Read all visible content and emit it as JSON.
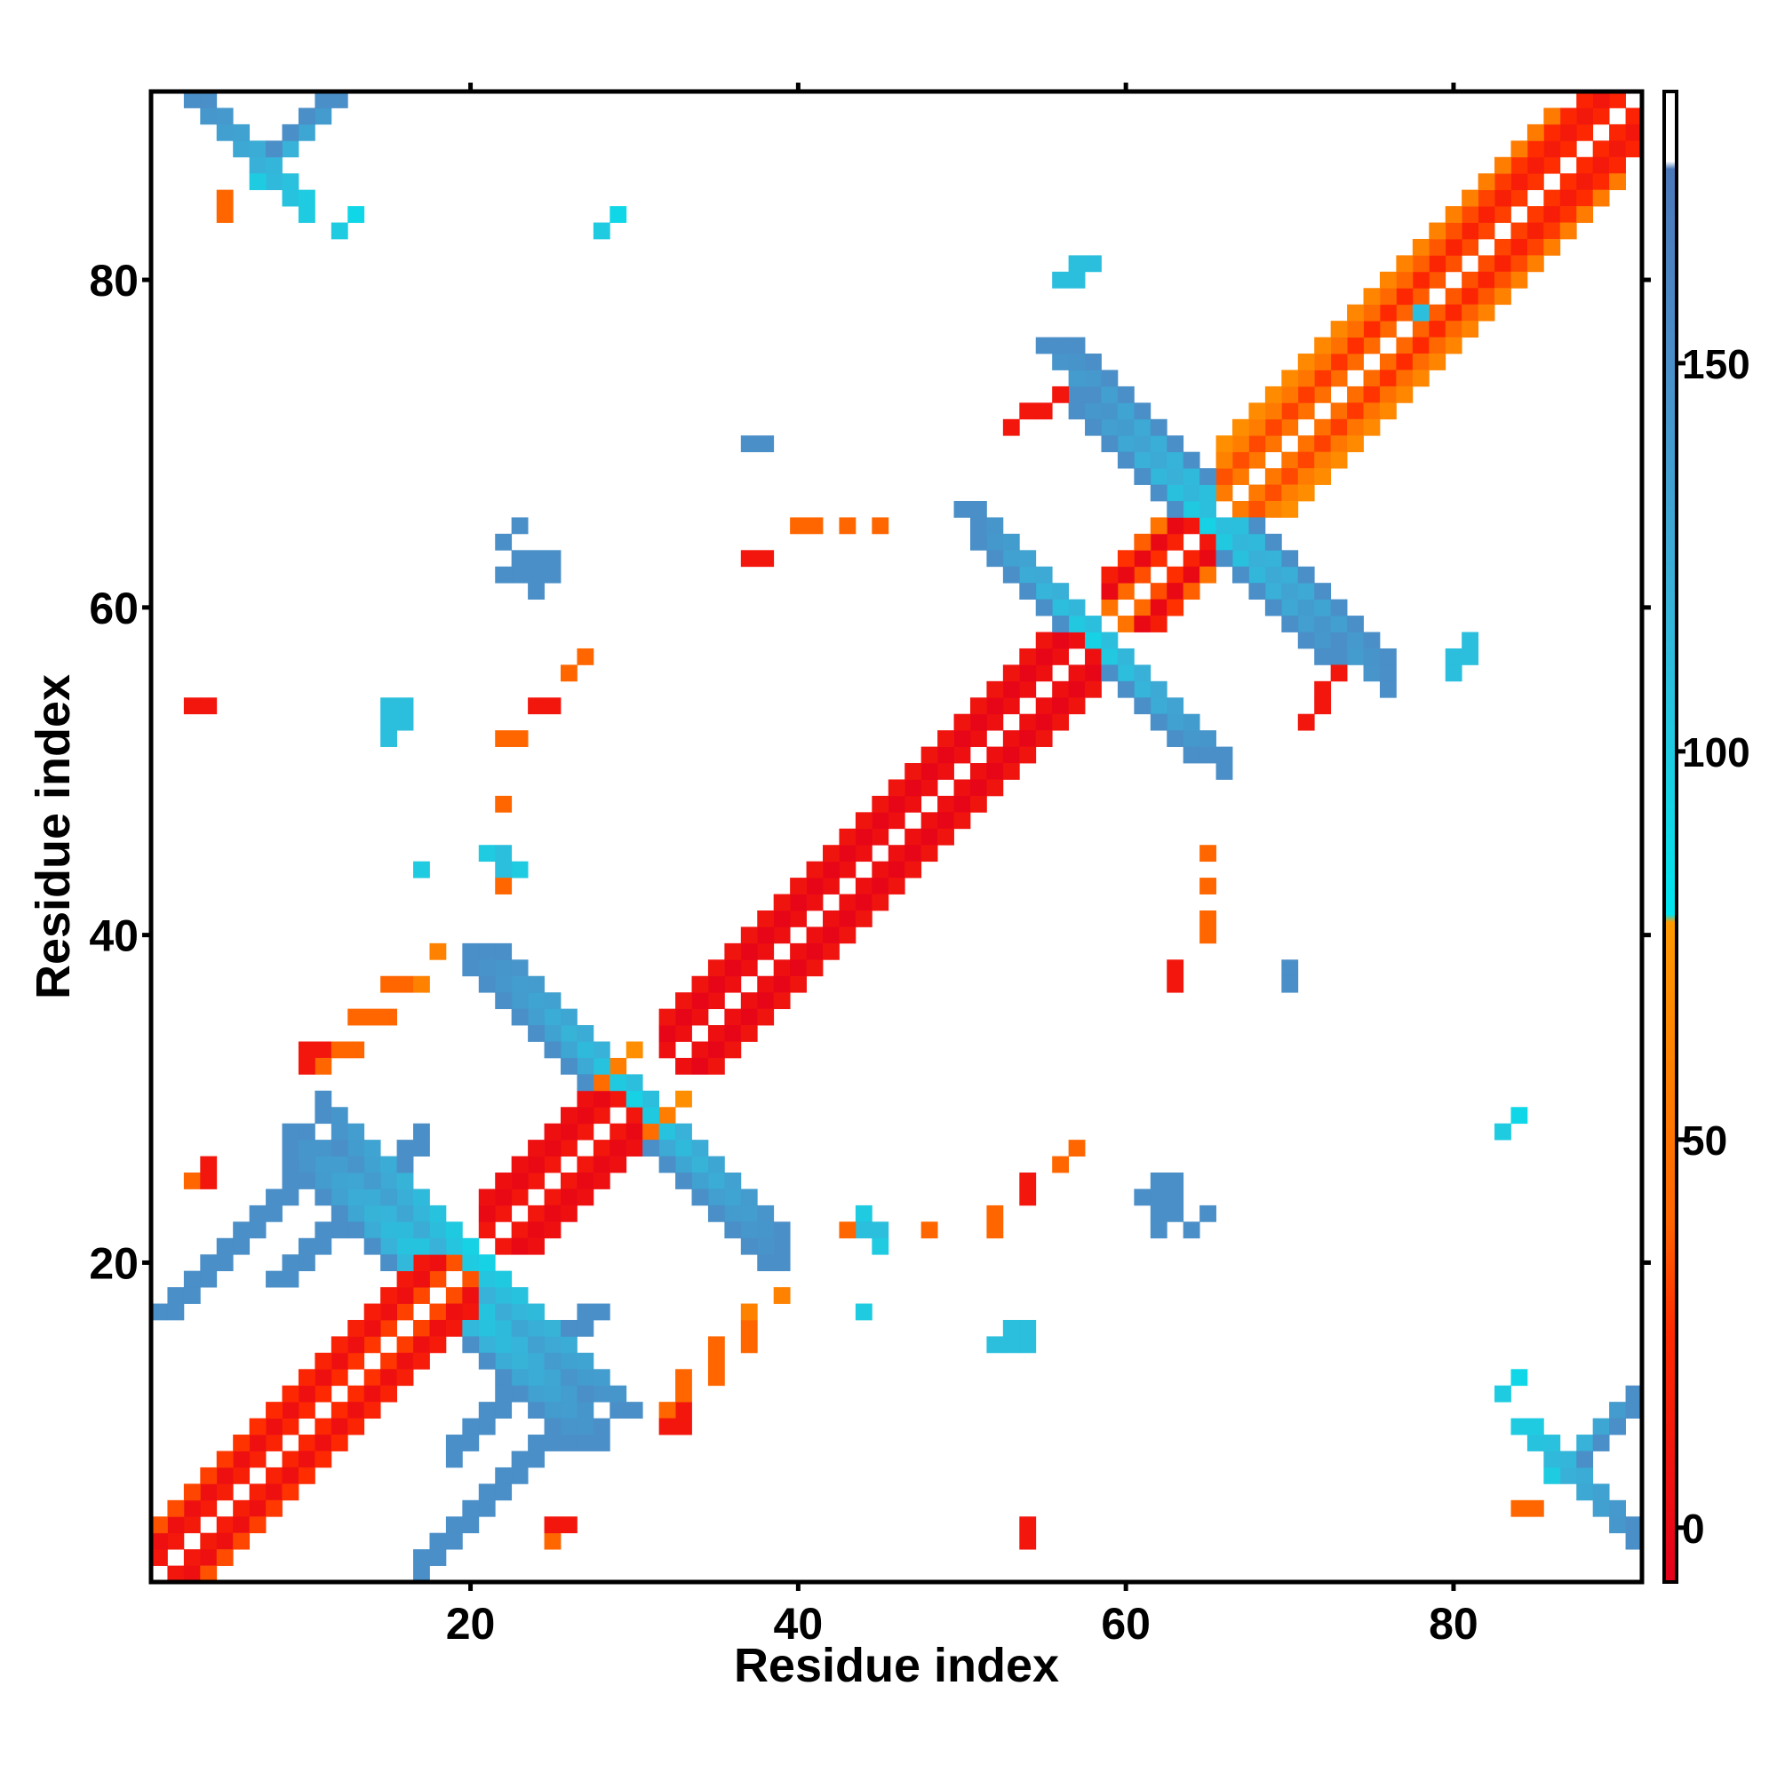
{
  "chart_data": {
    "type": "heatmap",
    "title": "",
    "xlabel": "Residue index",
    "ylabel": "Residue index",
    "xlim": [
      0.5,
      91.5
    ],
    "ylim": [
      0.5,
      91.5
    ],
    "x_ticks": [
      20,
      40,
      60,
      80
    ],
    "y_ticks": [
      20,
      40,
      60,
      80
    ],
    "x_tick_labels": [
      "20",
      "40",
      "60",
      "80"
    ],
    "y_tick_labels": [
      "20",
      "40",
      "60",
      "80"
    ],
    "grid": false,
    "legend": "colorbar-right",
    "colorbar": {
      "range": [
        -7,
        185
      ],
      "ticks": [
        0,
        50,
        100,
        150
      ],
      "tick_labels": [
        "0",
        "50",
        "100",
        "150"
      ],
      "stops": [
        {
          "value": -7,
          "color": "#e3001b"
        },
        {
          "value": 25,
          "color": "#ff2a00"
        },
        {
          "value": 40,
          "color": "#ff6600"
        },
        {
          "value": 78,
          "color": "#ff9900"
        },
        {
          "value": 79,
          "color": "#00e5ee"
        },
        {
          "value": 100,
          "color": "#1ecbe1"
        },
        {
          "value": 120,
          "color": "#38b2d8"
        },
        {
          "value": 150,
          "color": "#4a8fc8"
        },
        {
          "value": 175,
          "color": "#4a78b8"
        },
        {
          "value": 176,
          "color": "#ffffff"
        },
        {
          "value": 185,
          "color": "#ffffff"
        }
      ]
    },
    "segments": [
      {
        "i0": 1,
        "j0": 2,
        "len": 19,
        "step": 1,
        "values": [
          10,
          35
        ]
      },
      {
        "i0": 1,
        "j0": 3,
        "len": 18,
        "step": 1,
        "values": [
          5
        ]
      },
      {
        "i0": 1,
        "j0": 4,
        "len": 17,
        "step": 1,
        "values": [
          35,
          10
        ]
      },
      {
        "i0": 7,
        "j0": 10,
        "len": 8,
        "step": 1,
        "values": [
          15,
          40
        ]
      },
      {
        "i0": 21,
        "j0": 22,
        "len": 9,
        "step": 1,
        "values": [
          10
        ]
      },
      {
        "i0": 21,
        "j0": 23,
        "len": 8,
        "step": 1,
        "values": [
          0
        ]
      },
      {
        "i0": 21,
        "j0": 24,
        "len": 7,
        "step": 1,
        "values": [
          5
        ]
      },
      {
        "i0": 28,
        "j0": 31,
        "len": 3,
        "step": 1,
        "values": [
          45,
          70
        ]
      },
      {
        "i0": 32,
        "j0": 33,
        "len": 26,
        "step": 1,
        "values": [
          5
        ]
      },
      {
        "i0": 32,
        "j0": 34,
        "len": 25,
        "step": 1,
        "values": [
          -3
        ]
      },
      {
        "i0": 32,
        "j0": 35,
        "len": 24,
        "step": 1,
        "values": [
          8
        ]
      },
      {
        "i0": 38,
        "j0": 41,
        "len": 8,
        "step": 1,
        "values": [
          30,
          60,
          95
        ]
      },
      {
        "i0": 43,
        "j0": 46,
        "len": 4,
        "step": 1,
        "values": [
          100,
          90
        ]
      },
      {
        "i0": 59,
        "j0": 60,
        "len": 6,
        "step": 1,
        "values": [
          50,
          10
        ]
      },
      {
        "i0": 59,
        "j0": 61,
        "len": 5,
        "step": 1,
        "values": [
          0
        ]
      },
      {
        "i0": 59,
        "j0": 62,
        "len": 4,
        "step": 1,
        "values": [
          15,
          50
        ]
      },
      {
        "i0": 66,
        "j0": 67,
        "len": 25,
        "step": 1,
        "values": [
          55,
          20
        ]
      },
      {
        "i0": 66,
        "j0": 68,
        "len": 24,
        "step": 1,
        "values": [
          35,
          10
        ]
      },
      {
        "i0": 66,
        "j0": 69,
        "len": 23,
        "step": 1,
        "values": [
          60,
          20
        ]
      },
      {
        "i0": 66,
        "j0": 70,
        "len": 21,
        "step": 1,
        "values": [
          70,
          55
        ]
      },
      {
        "i0": 74,
        "j0": 78,
        "len": 5,
        "step": 1,
        "values": [
          100,
          120
        ]
      },
      {
        "i0": 19,
        "j0": 18,
        "len": 10,
        "step": -1,
        "values": [
          95,
          150
        ]
      },
      {
        "i0": 19,
        "j0": 17,
        "len": 9,
        "step": -1,
        "values": [
          110,
          150
        ]
      },
      {
        "i0": 19,
        "j0": 16,
        "len": 8,
        "step": -1,
        "values": [
          150
        ]
      },
      {
        "i0": 20,
        "j0": 18,
        "len": 9,
        "step": -1,
        "values": [
          100,
          150
        ]
      },
      {
        "i0": 30,
        "j0": 30,
        "len": 10,
        "step": -1,
        "values": [
          95,
          150
        ]
      },
      {
        "i0": 30,
        "j0": 29,
        "len": 10,
        "step": -1,
        "values": [
          120,
          150
        ]
      },
      {
        "i0": 31,
        "j0": 30,
        "len": 9,
        "step": -1,
        "values": [
          110,
          150
        ]
      },
      {
        "i0": 30,
        "j0": 28,
        "len": 9,
        "step": -1,
        "values": [
          150
        ]
      },
      {
        "i0": 20,
        "j0": 20,
        "len": 10,
        "step": -1,
        "values": [
          100,
          150
        ]
      },
      {
        "i0": 19,
        "j0": 20,
        "len": 9,
        "step": -1,
        "values": [
          110,
          150
        ]
      },
      {
        "i0": 21,
        "j0": 20,
        "len": 10,
        "step": -1,
        "values": [
          95,
          150
        ]
      },
      {
        "i0": 58,
        "j0": 58,
        "len": 8,
        "step": -1,
        "values": [
          95,
          150
        ]
      },
      {
        "i0": 59,
        "j0": 58,
        "len": 8,
        "step": -1,
        "values": [
          110,
          150
        ]
      },
      {
        "i0": 58,
        "j0": 57,
        "len": 7,
        "step": -1,
        "values": [
          150
        ]
      },
      {
        "i0": 58,
        "j0": 58,
        "len": 9,
        "step": -1,
        "values": [
          95,
          150
        ]
      },
      {
        "i0": 57,
        "j0": 58,
        "len": 8,
        "step": -1,
        "values": [
          110,
          150
        ]
      },
      {
        "i0": 58,
        "j0": 59,
        "len": 8,
        "step": -1,
        "values": [
          150
        ]
      },
      {
        "i0": 65,
        "j0": 65,
        "len": 9,
        "step": -1,
        "values": [
          95,
          150
        ]
      },
      {
        "i0": 66,
        "j0": 65,
        "len": 8,
        "step": -1,
        "values": [
          110,
          150
        ]
      },
      {
        "i0": 65,
        "j0": 64,
        "len": 8,
        "step": -1,
        "values": [
          150
        ]
      },
      {
        "i0": 66,
        "j0": 65,
        "len": 11,
        "step": -1,
        "values": [
          100,
          150
        ]
      },
      {
        "i0": 67,
        "j0": 65,
        "len": 10,
        "step": -1,
        "values": [
          110,
          150
        ]
      },
      {
        "i0": 68,
        "j0": 65,
        "len": 9,
        "step": -1,
        "values": [
          150
        ]
      },
      {
        "i0": 1,
        "j0": 17,
        "len": 9,
        "step": 1,
        "values": [
          150
        ]
      },
      {
        "i0": 2,
        "j0": 17,
        "len": 8,
        "step": 1,
        "values": [
          150
        ]
      },
      {
        "i0": 8,
        "j0": 19,
        "len": 10,
        "step": 1,
        "values": [
          150
        ]
      },
      {
        "i0": 9,
        "j0": 19,
        "len": 9,
        "step": 1,
        "values": [
          150
        ]
      },
      {
        "i0": 3,
        "j0": 91,
        "len": 8,
        "step": -1,
        "values": [
          150,
          100
        ]
      },
      {
        "i0": 4,
        "j0": 91,
        "len": 7,
        "step": -1,
        "values": [
          150,
          100
        ]
      },
      {
        "i0": 86,
        "j0": 7,
        "len": 6,
        "step": 1,
        "values": [
          100,
          150
        ]
      },
      {
        "i0": 87,
        "j0": 7,
        "len": 5,
        "step": 1,
        "values": [
          150
        ]
      },
      {
        "i0": 76,
        "j0": 80,
        "len": 4,
        "step": -1,
        "values": [
          110
        ]
      },
      {
        "i0": 77,
        "j0": 80,
        "len": 3,
        "step": -1,
        "values": [
          110
        ]
      }
    ],
    "cells": [
      [
        3,
        4,
        40
      ],
      [
        4,
        5,
        40
      ],
      [
        13,
        84,
        90
      ],
      [
        29,
        84,
        90
      ],
      [
        4,
        54,
        10
      ],
      [
        25,
        54,
        10
      ],
      [
        27,
        57,
        40
      ],
      [
        23,
        52,
        40
      ],
      [
        16,
        54,
        110
      ],
      [
        16,
        53,
        110
      ],
      [
        23,
        65,
        150
      ],
      [
        23,
        63,
        150
      ],
      [
        24,
        63,
        150
      ],
      [
        25,
        63,
        150
      ],
      [
        25,
        62,
        150
      ],
      [
        38,
        70,
        150
      ],
      [
        38,
        63,
        10
      ],
      [
        41,
        65,
        40
      ],
      [
        45,
        65,
        40
      ],
      [
        11,
        33,
        10
      ],
      [
        11,
        32,
        40
      ],
      [
        4,
        26,
        10
      ],
      [
        3,
        25,
        40
      ],
      [
        4,
        25,
        10
      ],
      [
        13,
        35,
        40
      ],
      [
        14,
        35,
        40
      ],
      [
        15,
        37,
        40
      ],
      [
        16,
        37,
        40
      ],
      [
        18,
        39,
        60
      ],
      [
        20,
        39,
        60
      ],
      [
        21,
        39,
        100
      ],
      [
        17,
        44,
        100
      ],
      [
        21,
        45,
        100
      ],
      [
        22,
        45,
        110
      ],
      [
        23,
        44,
        100
      ],
      [
        25,
        3,
        10
      ],
      [
        26,
        4,
        10
      ],
      [
        37,
        17,
        60
      ],
      [
        38,
        20,
        70
      ],
      [
        35,
        15,
        40
      ],
      [
        35,
        14,
        40
      ],
      [
        33,
        13,
        40
      ],
      [
        33,
        12,
        40
      ],
      [
        44,
        17,
        110
      ],
      [
        44,
        22,
        110
      ],
      [
        43,
        22,
        40
      ],
      [
        48,
        22,
        40
      ],
      [
        52,
        15,
        110
      ],
      [
        53,
        15,
        110
      ],
      [
        54,
        15,
        110
      ],
      [
        54,
        3,
        10
      ],
      [
        52,
        22,
        40
      ],
      [
        54,
        24,
        10
      ],
      [
        56,
        26,
        40
      ],
      [
        61,
        24,
        150
      ],
      [
        62,
        24,
        150
      ],
      [
        62,
        23,
        150
      ],
      [
        62,
        22,
        150
      ],
      [
        64,
        22,
        150
      ],
      [
        63,
        37,
        10
      ],
      [
        65,
        40,
        40
      ],
      [
        65,
        43,
        40
      ],
      [
        70,
        37,
        150
      ],
      [
        56,
        80,
        110
      ],
      [
        57,
        80,
        110
      ],
      [
        53,
        71,
        10
      ],
      [
        54,
        72,
        10
      ],
      [
        72,
        55,
        10
      ],
      [
        73,
        56,
        10
      ],
      [
        75,
        58,
        60
      ],
      [
        74,
        58,
        100
      ],
      [
        81,
        57,
        110
      ],
      [
        81,
        58,
        110
      ],
      [
        83,
        28,
        100
      ],
      [
        83,
        12,
        100
      ],
      [
        84,
        5,
        40
      ],
      [
        85,
        5,
        40
      ],
      [
        32,
        10,
        10
      ],
      [
        33,
        10,
        10
      ]
    ]
  }
}
